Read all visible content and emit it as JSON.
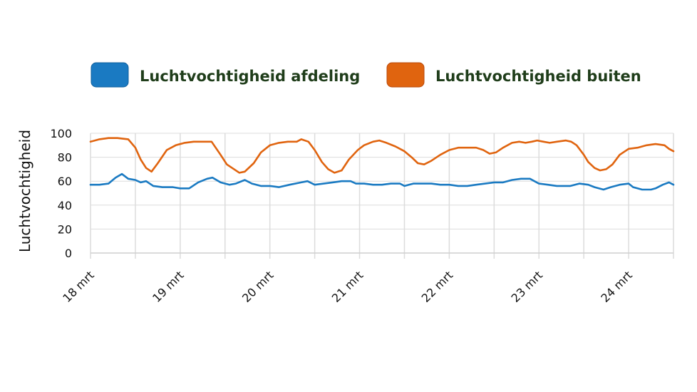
{
  "chart_data": {
    "type": "line",
    "title": "",
    "xlabel": "",
    "ylabel": "Luchtvochtigheid",
    "ylim": [
      0,
      100
    ],
    "y_ticks": [
      "100",
      "80",
      "60",
      "40",
      "20",
      "0"
    ],
    "xlim": [
      0,
      6.5
    ],
    "x_ticks": [
      {
        "x": 0,
        "label": "18 mrt"
      },
      {
        "x": 1,
        "label": "19 mrt"
      },
      {
        "x": 2,
        "label": "20 mrt"
      },
      {
        "x": 3,
        "label": "21 mrt"
      },
      {
        "x": 4,
        "label": "22 mrt"
      },
      {
        "x": 5,
        "label": "23 mrt"
      },
      {
        "x": 6,
        "label": "24 mrt"
      }
    ],
    "grid": true,
    "legend_position": "top",
    "series": [
      {
        "name": "Luchtvochtigheid afdeling",
        "color": "#1a7ac2",
        "points": [
          [
            0,
            57
          ],
          [
            0.1,
            57
          ],
          [
            0.2,
            58
          ],
          [
            0.28,
            63
          ],
          [
            0.35,
            66
          ],
          [
            0.42,
            62
          ],
          [
            0.5,
            61
          ],
          [
            0.56,
            59
          ],
          [
            0.62,
            60
          ],
          [
            0.7,
            56
          ],
          [
            0.8,
            55
          ],
          [
            0.92,
            55
          ],
          [
            1.0,
            54
          ],
          [
            1.1,
            54
          ],
          [
            1.2,
            59
          ],
          [
            1.3,
            62
          ],
          [
            1.36,
            63
          ],
          [
            1.45,
            59
          ],
          [
            1.55,
            57
          ],
          [
            1.62,
            58
          ],
          [
            1.72,
            61
          ],
          [
            1.8,
            58
          ],
          [
            1.9,
            56
          ],
          [
            2.0,
            56
          ],
          [
            2.1,
            55
          ],
          [
            2.22,
            57
          ],
          [
            2.35,
            59
          ],
          [
            2.42,
            60
          ],
          [
            2.5,
            57
          ],
          [
            2.6,
            58
          ],
          [
            2.7,
            59
          ],
          [
            2.8,
            60
          ],
          [
            2.9,
            60
          ],
          [
            2.96,
            58
          ],
          [
            3.05,
            58
          ],
          [
            3.15,
            57
          ],
          [
            3.25,
            57
          ],
          [
            3.35,
            58
          ],
          [
            3.45,
            58
          ],
          [
            3.5,
            56
          ],
          [
            3.6,
            58
          ],
          [
            3.7,
            58
          ],
          [
            3.8,
            58
          ],
          [
            3.9,
            57
          ],
          [
            4.0,
            57
          ],
          [
            4.1,
            56
          ],
          [
            4.2,
            56
          ],
          [
            4.3,
            57
          ],
          [
            4.4,
            58
          ],
          [
            4.5,
            59
          ],
          [
            4.6,
            59
          ],
          [
            4.7,
            61
          ],
          [
            4.8,
            62
          ],
          [
            4.9,
            62
          ],
          [
            5.0,
            58
          ],
          [
            5.1,
            57
          ],
          [
            5.2,
            56
          ],
          [
            5.35,
            56
          ],
          [
            5.45,
            58
          ],
          [
            5.55,
            57
          ],
          [
            5.62,
            55
          ],
          [
            5.72,
            53
          ],
          [
            5.8,
            55
          ],
          [
            5.9,
            57
          ],
          [
            6.0,
            58
          ],
          [
            6.05,
            55
          ],
          [
            6.15,
            53
          ],
          [
            6.25,
            53
          ],
          [
            6.3,
            54
          ],
          [
            6.38,
            57
          ],
          [
            6.45,
            59
          ],
          [
            6.5,
            57
          ]
        ]
      },
      {
        "name": "Luchtvochtigheid buiten",
        "color": "#e0640f",
        "points": [
          [
            0,
            93
          ],
          [
            0.1,
            95
          ],
          [
            0.2,
            96
          ],
          [
            0.3,
            96
          ],
          [
            0.42,
            95
          ],
          [
            0.5,
            88
          ],
          [
            0.56,
            78
          ],
          [
            0.62,
            71
          ],
          [
            0.68,
            68
          ],
          [
            0.75,
            75
          ],
          [
            0.85,
            86
          ],
          [
            0.95,
            90
          ],
          [
            1.05,
            92
          ],
          [
            1.15,
            93
          ],
          [
            1.25,
            93
          ],
          [
            1.35,
            93
          ],
          [
            1.45,
            82
          ],
          [
            1.52,
            74
          ],
          [
            1.6,
            70
          ],
          [
            1.66,
            67
          ],
          [
            1.72,
            68
          ],
          [
            1.82,
            75
          ],
          [
            1.9,
            84
          ],
          [
            2.0,
            90
          ],
          [
            2.1,
            92
          ],
          [
            2.2,
            93
          ],
          [
            2.3,
            93
          ],
          [
            2.35,
            95
          ],
          [
            2.43,
            93
          ],
          [
            2.5,
            86
          ],
          [
            2.58,
            76
          ],
          [
            2.65,
            70
          ],
          [
            2.72,
            67
          ],
          [
            2.8,
            69
          ],
          [
            2.88,
            78
          ],
          [
            2.98,
            86
          ],
          [
            3.05,
            90
          ],
          [
            3.15,
            93
          ],
          [
            3.22,
            94
          ],
          [
            3.3,
            92
          ],
          [
            3.4,
            89
          ],
          [
            3.5,
            85
          ],
          [
            3.58,
            80
          ],
          [
            3.65,
            75
          ],
          [
            3.72,
            74
          ],
          [
            3.8,
            77
          ],
          [
            3.9,
            82
          ],
          [
            4.0,
            86
          ],
          [
            4.1,
            88
          ],
          [
            4.2,
            88
          ],
          [
            4.3,
            88
          ],
          [
            4.38,
            86
          ],
          [
            4.45,
            83
          ],
          [
            4.52,
            84
          ],
          [
            4.6,
            88
          ],
          [
            4.7,
            92
          ],
          [
            4.78,
            93
          ],
          [
            4.85,
            92
          ],
          [
            4.92,
            93
          ],
          [
            4.98,
            94
          ],
          [
            5.05,
            93
          ],
          [
            5.12,
            92
          ],
          [
            5.2,
            93
          ],
          [
            5.3,
            94
          ],
          [
            5.36,
            93
          ],
          [
            5.42,
            90
          ],
          [
            5.5,
            82
          ],
          [
            5.55,
            76
          ],
          [
            5.62,
            71
          ],
          [
            5.68,
            69
          ],
          [
            5.75,
            70
          ],
          [
            5.82,
            74
          ],
          [
            5.9,
            82
          ],
          [
            6.0,
            87
          ],
          [
            6.1,
            88
          ],
          [
            6.2,
            90
          ],
          [
            6.3,
            91
          ],
          [
            6.4,
            90
          ],
          [
            6.45,
            87
          ],
          [
            6.5,
            85
          ]
        ]
      }
    ]
  }
}
